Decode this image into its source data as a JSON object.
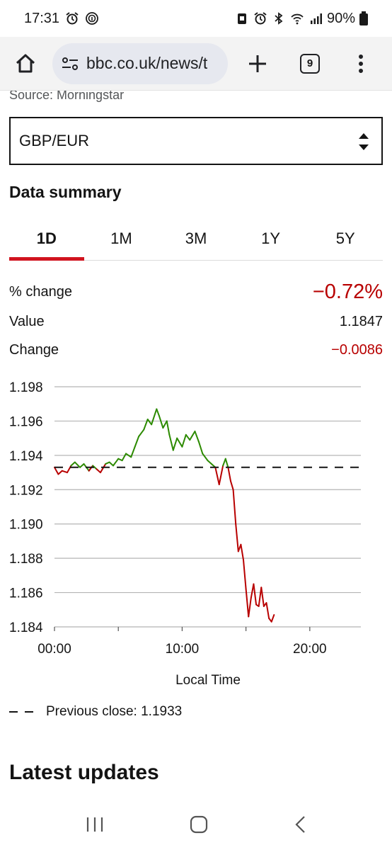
{
  "status_bar": {
    "time": "17:31",
    "battery": "90%"
  },
  "browser": {
    "url": "bbc.co.uk/news/t",
    "tab_count": "9"
  },
  "page": {
    "source": "Source: Morningstar",
    "currency_pair": "GBP/EUR",
    "summary_title": "Data summary",
    "tabs": [
      {
        "label": "1D",
        "active": true
      },
      {
        "label": "1M",
        "active": false
      },
      {
        "label": "3M",
        "active": false
      },
      {
        "label": "1Y",
        "active": false
      },
      {
        "label": "5Y",
        "active": false
      }
    ],
    "stats": {
      "pct_change_label": "% change",
      "pct_change_value": "−0.72%",
      "value_label": "Value",
      "value_value": "1.1847",
      "change_label": "Change",
      "change_value": "−0.0086"
    },
    "legend_label": "Previous close: 1.1933",
    "latest_title": "Latest updates"
  },
  "colors": {
    "accent_red": "#d1131f",
    "negative": "#b80000",
    "up_line": "#2c8a00",
    "down_line": "#b80000"
  },
  "chart_data": {
    "type": "line",
    "title": "",
    "xlabel": "Local Time",
    "ylabel": "",
    "xlim": [
      0,
      24
    ],
    "ylim": [
      1.184,
      1.198
    ],
    "x_ticks": [
      "00:00",
      "10:00",
      "20:00"
    ],
    "x_tick_values": [
      0,
      10,
      20
    ],
    "y_ticks": [
      "1.198",
      "1.196",
      "1.194",
      "1.192",
      "1.190",
      "1.188",
      "1.186",
      "1.184"
    ],
    "y_tick_values": [
      1.198,
      1.196,
      1.194,
      1.192,
      1.19,
      1.188,
      1.186,
      1.184
    ],
    "grid": true,
    "reference_line": {
      "label": "Previous close: 1.1933",
      "value": 1.1933
    },
    "series": [
      {
        "x": [
          0.0,
          0.3,
          0.6,
          1.0,
          1.3,
          1.6,
          2.0,
          2.3,
          2.7,
          3.0,
          3.3,
          3.6,
          4.0,
          4.3,
          4.6,
          5.0,
          5.3,
          5.6,
          6.0,
          6.3,
          6.6,
          7.0,
          7.3,
          7.6,
          8.0,
          8.2,
          8.5,
          8.8,
          9.0,
          9.3,
          9.6,
          10.0,
          10.3,
          10.6,
          11.0,
          11.3,
          11.6,
          12.0,
          12.3,
          12.6,
          12.9,
          13.2,
          13.4,
          13.6,
          13.8,
          14.0,
          14.2,
          14.4,
          14.6,
          14.8,
          15.0,
          15.2,
          15.4,
          15.6,
          15.8,
          16.0,
          16.2,
          16.4,
          16.6,
          16.8,
          17.0,
          17.2
        ],
        "y": [
          1.1933,
          1.1929,
          1.1931,
          1.193,
          1.1934,
          1.1936,
          1.1933,
          1.1935,
          1.1931,
          1.1934,
          1.1932,
          1.193,
          1.1935,
          1.1936,
          1.1934,
          1.1938,
          1.1937,
          1.1941,
          1.1939,
          1.1945,
          1.1951,
          1.1955,
          1.1961,
          1.1958,
          1.1967,
          1.1963,
          1.1956,
          1.196,
          1.1952,
          1.1943,
          1.195,
          1.1945,
          1.1952,
          1.1949,
          1.1954,
          1.1948,
          1.1941,
          1.1937,
          1.1935,
          1.1933,
          1.1923,
          1.1934,
          1.1938,
          1.1933,
          1.1925,
          1.192,
          1.19,
          1.1884,
          1.1888,
          1.1879,
          1.1862,
          1.1846,
          1.1857,
          1.1865,
          1.1853,
          1.1852,
          1.1863,
          1.1852,
          1.1854,
          1.1845,
          1.1843,
          1.1847
        ]
      }
    ]
  }
}
